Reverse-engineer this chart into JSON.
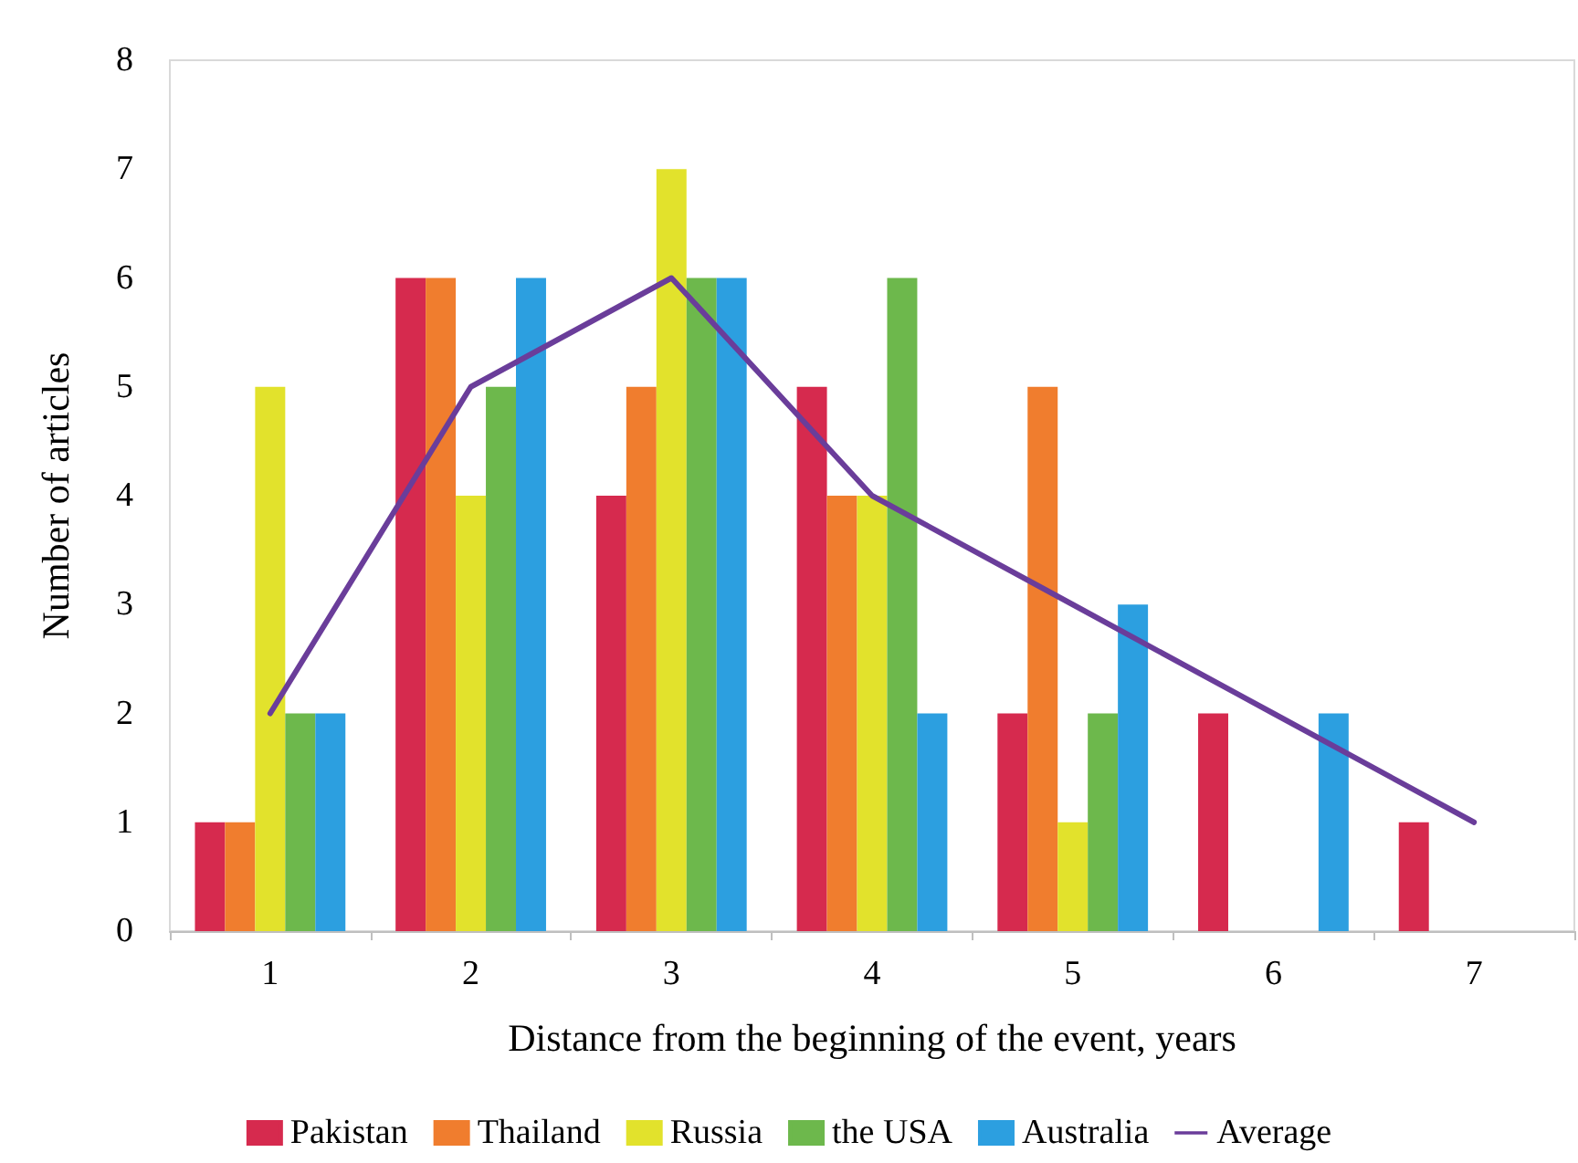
{
  "chart_data": {
    "type": "bar",
    "xlabel": "Distance from the beginning of the event, years",
    "ylabel": "Number of articles",
    "categories": [
      "1",
      "2",
      "3",
      "4",
      "5",
      "6",
      "7"
    ],
    "series": [
      {
        "name": "Pakistan",
        "color": "#d62a4e",
        "values": [
          1,
          6,
          4,
          5,
          2,
          2,
          1
        ]
      },
      {
        "name": "Thailand",
        "color": "#f07d2e",
        "values": [
          1,
          6,
          5,
          4,
          5,
          null,
          null
        ]
      },
      {
        "name": "Russia",
        "color": "#e2e22c",
        "values": [
          5,
          4,
          7,
          4,
          1,
          null,
          null
        ]
      },
      {
        "name": "the USA",
        "color": "#6db84c",
        "values": [
          2,
          5,
          6,
          6,
          2,
          null,
          null
        ]
      },
      {
        "name": "Australia",
        "color": "#2c9fe0",
        "values": [
          2,
          6,
          6,
          2,
          3,
          2,
          null
        ]
      },
      {
        "name": "Average",
        "type": "line",
        "color": "#6a3d9a",
        "values": [
          2,
          5,
          6,
          4,
          3,
          2,
          1
        ]
      }
    ],
    "ylim": [
      0,
      8
    ],
    "yticks": [
      0,
      1,
      2,
      3,
      4,
      5,
      6,
      7,
      8
    ],
    "grid": false,
    "legend": "bottom",
    "marker": "none",
    "line_style": "solid"
  }
}
